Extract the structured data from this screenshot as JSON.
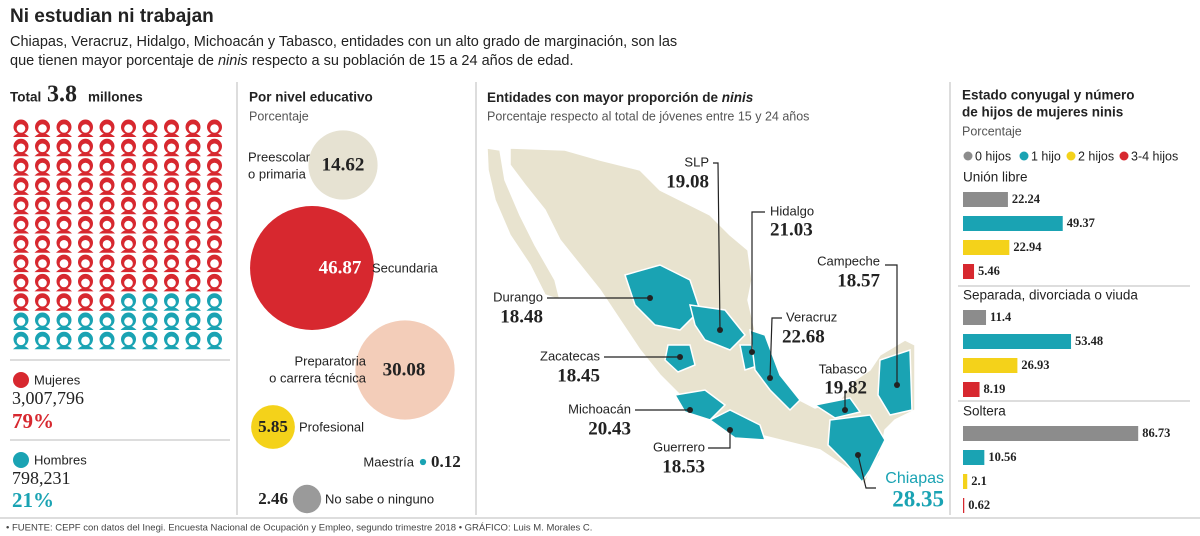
{
  "header": {
    "title": "Ni estudian ni trabajan",
    "subtitle": [
      "Chiapas, Veracruz, Hidalgo, Michoacán y Tabasco, entidades con un alto grado de marginación, son las que tienen mayor porcentaje de ",
      "ninis",
      " respecto a su población de 15 a 24 años de edad."
    ]
  },
  "total": {
    "label": "Total",
    "value": "3.8",
    "unit": "millones",
    "groups": [
      {
        "name": "Mujeres",
        "count": "3,007,796",
        "percent": 79,
        "percent_label": "79%",
        "color": "#d7282f"
      },
      {
        "name": "Hombres",
        "count": "798,231",
        "percent": 21,
        "percent_label": "21%",
        "color": "#1aa3b3"
      }
    ]
  },
  "education": {
    "title": "Por nivel educativo",
    "subtitle": "Porcentaje",
    "levels": [
      {
        "label": [
          "Preescolar",
          "o primaria"
        ],
        "value": 14.62,
        "color": "#e6e2d2"
      },
      {
        "label": [
          "Secundaria"
        ],
        "value": 46.87,
        "color": "#d7282f"
      },
      {
        "label": [
          "Preparatoria",
          "o carrera técnica"
        ],
        "value": 30.08,
        "color": "#f3cdb9"
      },
      {
        "label": [
          "Profesional"
        ],
        "value": 5.85,
        "color": "#f4d21a"
      },
      {
        "label": [
          "Maestría"
        ],
        "value": 0.12,
        "color": "#1aa3b3"
      },
      {
        "label": [
          "No sabe o ninguno"
        ],
        "value": 2.46,
        "color": "#9a9a9a"
      }
    ]
  },
  "map": {
    "title": [
      "Entidades con mayor proporción de ",
      "ninis"
    ],
    "subtitle": "Porcentaje respecto al total de jóvenes entre 15 y 24 años",
    "states": [
      {
        "name": "SLP",
        "value": 19.08
      },
      {
        "name": "Hidalgo",
        "value": 21.03
      },
      {
        "name": "Campeche",
        "value": 18.57
      },
      {
        "name": "Durango",
        "value": 18.48
      },
      {
        "name": "Veracruz",
        "value": 22.68
      },
      {
        "name": "Zacatecas",
        "value": 18.45
      },
      {
        "name": "Tabasco",
        "value": 19.82
      },
      {
        "name": "Michoacán",
        "value": 20.43
      },
      {
        "name": "Guerrero",
        "value": 18.53
      },
      {
        "name": "Chiapas",
        "value": 28.35
      }
    ]
  },
  "marital": {
    "title": [
      "Estado conyugal y número",
      "de hijos de mujeres ninis"
    ],
    "subtitle": "Porcentaje",
    "legend": [
      {
        "name": "0 hijos",
        "color": "#8c8c8c"
      },
      {
        "name": "1 hijo",
        "color": "#1aa3b3"
      },
      {
        "name": "2 hijos",
        "color": "#f4d21a"
      },
      {
        "name": "3-4 hijos",
        "color": "#d7282f"
      }
    ],
    "groups": [
      {
        "name": "Unión libre",
        "values": [
          22.24,
          49.37,
          22.94,
          5.46
        ]
      },
      {
        "name": "Separada, divorciada o viuda",
        "values": [
          11.4,
          53.48,
          26.93,
          8.19
        ]
      },
      {
        "name": "Soltera",
        "values": [
          86.73,
          10.56,
          2.1,
          0.62
        ]
      }
    ]
  },
  "footer": "• FUENTE: CEPF con datos del Inegi. Encuesta Nacional de Ocupación y Empleo, segundo trimestre 2018 • GRÁFICO: Luis M. Morales C."
}
